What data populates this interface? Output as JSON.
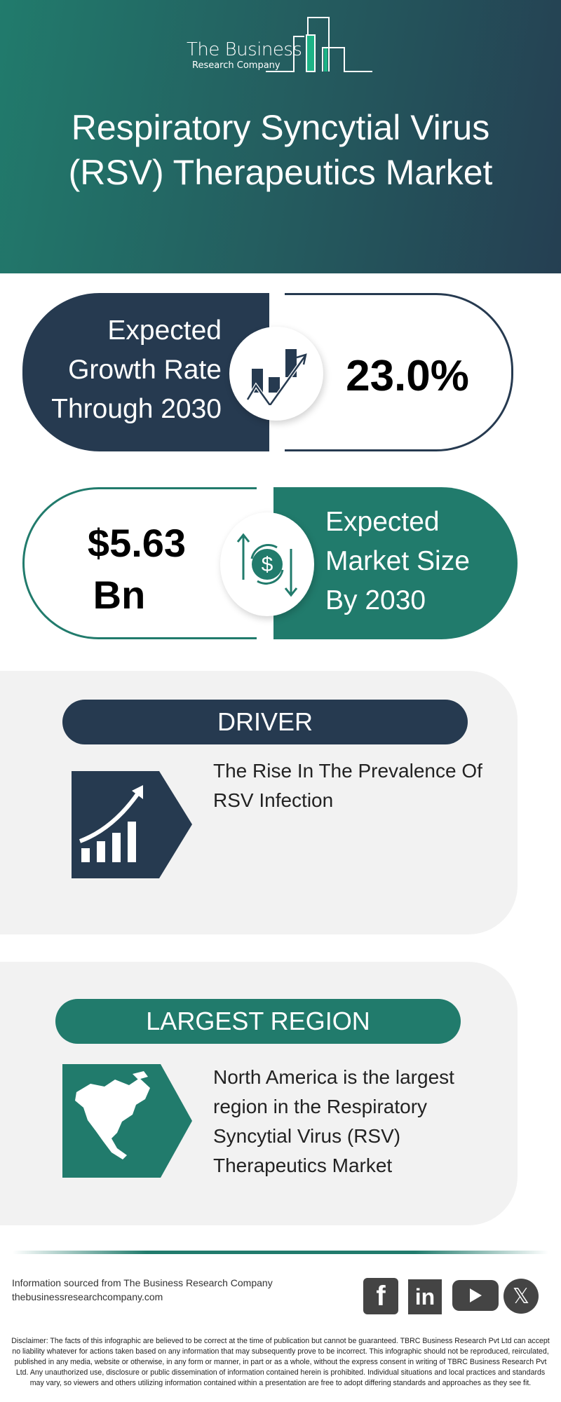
{
  "header": {
    "logo_line1": "The Business",
    "logo_line2": "Research Company",
    "title": "Respiratory Syncytial Virus (RSV) Therapeutics Market"
  },
  "growth": {
    "label_lines": [
      "Expected",
      "Growth Rate",
      "Through 2030"
    ],
    "value": "23.0%",
    "icon": "growth-chart-icon"
  },
  "market_size": {
    "value_line1": "$5.63",
    "value_line2": "Bn",
    "label_lines": [
      "Expected",
      "Market Size",
      "By 2030"
    ],
    "icon": "dollar-cycle-icon"
  },
  "driver": {
    "heading": "DRIVER",
    "text_lines": [
      "The Rise In The Prevalence Of",
      "RSV Infection"
    ],
    "icon": "rising-bars-icon"
  },
  "region": {
    "heading": "LARGEST REGION",
    "text_lines": [
      "North America is the largest",
      "region in the Respiratory",
      "Syncytial Virus (RSV)",
      "Therapeutics Market"
    ],
    "icon": "north-america-map-icon"
  },
  "footer": {
    "source": "Information sourced from The Business Research Company",
    "website": "thebusinessresearchcompany.com",
    "social": [
      "facebook",
      "linkedin",
      "youtube",
      "x"
    ],
    "disclaimer": "Disclaimer: The facts of this infographic are believed to be correct at the time of publication but cannot be guaranteed. TBRC Business Research Pvt Ltd can accept no liability whatever for actions taken based on any information that may subsequently prove to be incorrect. This infographic should not be reproduced, reirculated, published in any media, website or otherwise, in any form or manner, in part or as a whole, without the express consent in writing of TBRC Business Research Pvt Ltd. Any unauthorized use, disclosure or public dissemination of information contained herein is prohibited. Individual situations and local practices and standards may vary, so viewers and others utilizing information contained within a presentation are free to adopt differing standards and approaches as they see fit."
  },
  "colors": {
    "navy": "#263a50",
    "teal": "#217b6c",
    "panel": "#f2f2f2"
  }
}
